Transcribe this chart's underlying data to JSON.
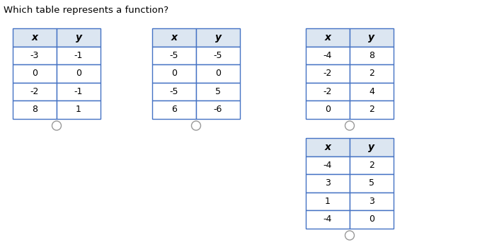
{
  "title": "Which table represents a function?",
  "tables": [
    {
      "x_vals": [
        "-3",
        "0",
        "-2",
        "8"
      ],
      "y_vals": [
        "-1",
        "0",
        "-1",
        "1"
      ]
    },
    {
      "x_vals": [
        "-5",
        "0",
        "-5",
        "6"
      ],
      "y_vals": [
        "-5",
        "0",
        "5",
        "-6"
      ]
    },
    {
      "x_vals": [
        "-4",
        "-2",
        "-2",
        "0"
      ],
      "y_vals": [
        "8",
        "2",
        "4",
        "2"
      ]
    },
    {
      "x_vals": [
        "-4",
        "3",
        "1",
        "-4"
      ],
      "y_vals": [
        "2",
        "5",
        "3",
        "0"
      ]
    }
  ],
  "header_color": "#dce6f1",
  "cell_color": "#ffffff",
  "border_color": "#4472c4",
  "text_color": "#000000",
  "background_color": "#ffffff",
  "title_fontsize": 9.5,
  "cell_fontsize": 9,
  "header_fontsize": 10
}
